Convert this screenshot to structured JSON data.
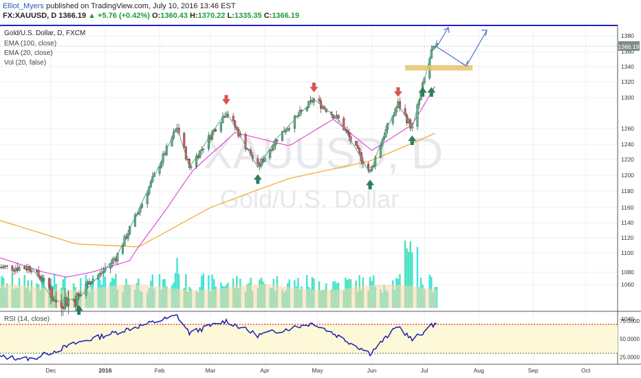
{
  "header": {
    "author": "Elliot_Myers",
    "published": "published on TradingView.com, July 10, 2016 13:46 EST",
    "symbol": "FX:XAUUSD, D",
    "last": "1366.19",
    "change": "+5.76 (+0.42%)",
    "o_label": "O:",
    "o": "1360.43",
    "h_label": "H:",
    "h": "1370.22",
    "l_label": "L:",
    "l": "1335.35",
    "c_label": "C:",
    "c": "1366.19"
  },
  "legend": {
    "title": "Gold/U.S. Dollar, D, FXCM",
    "ema100": "EMA (100, close)",
    "ema20": "EMA (20, close)",
    "vol": "Vol (20, false)",
    "rsi": "RSI (14, close)"
  },
  "watermark": {
    "symbol": "XAUUSD, D",
    "name": "Gold/U.S. Dollar"
  },
  "price_badge": "1366.19",
  "colors": {
    "up": "#53b987",
    "down": "#eb4d5c",
    "ema100": "#f5a623",
    "ema20": "#e14cd3",
    "vol_up": "#3ee4d8",
    "vol_down": "#4fe0b5",
    "vol_ma": "#f7d9a8",
    "rsi": "#1b1bb0",
    "rsi_band": "#fdf8d8",
    "rsi_line": "#e02020",
    "pattern": "#4caf82",
    "arrow_up": "#2e7d5b",
    "arrow_down": "#d9534f",
    "zone": "#e7c36a",
    "projection": "#4a6fd1"
  },
  "chart_data": [
    {
      "type": "candlestick",
      "title": "Gold/U.S. Dollar, D, FXCM",
      "x_tick_labels": [
        "Dec",
        "2016",
        "Feb",
        "Mar",
        "Apr",
        "May",
        "Jun",
        "Jul",
        "Aug",
        "Sep",
        "Oct"
      ],
      "y_tick_labels": [
        1040,
        1060,
        1080,
        1100,
        1120,
        1140,
        1160,
        1180,
        1200,
        1220,
        1240,
        1260,
        1300,
        1320,
        1340,
        1360,
        1380
      ],
      "ylim": [
        1030,
        1392
      ],
      "last_price": 1366.19,
      "resistance_zone": [
        1335,
        1342
      ],
      "key_points": [
        {
          "date": "2015-11-20",
          "price": 1085
        },
        {
          "date": "2015-12-03",
          "price": 1050
        },
        {
          "date": "2015-12-17",
          "price": 1052
        },
        {
          "date": "2016-01-08",
          "price": 1098
        },
        {
          "date": "2016-02-11",
          "price": 1262
        },
        {
          "date": "2016-02-18",
          "price": 1210
        },
        {
          "date": "2016-03-10",
          "price": 1282
        },
        {
          "date": "2016-03-28",
          "price": 1210
        },
        {
          "date": "2016-04-08",
          "price": 1248
        },
        {
          "date": "2016-04-29",
          "price": 1298
        },
        {
          "date": "2016-05-13",
          "price": 1272
        },
        {
          "date": "2016-05-31",
          "price": 1203
        },
        {
          "date": "2016-06-07",
          "price": 1247
        },
        {
          "date": "2016-06-16",
          "price": 1292
        },
        {
          "date": "2016-06-24",
          "price": 1260
        },
        {
          "date": "2016-07-05",
          "price": 1360
        },
        {
          "date": "2016-07-08",
          "price": 1366
        }
      ],
      "series": [
        {
          "name": "EMA (100, close)",
          "points": [
            {
              "date": "2015-11-02",
              "value": 1143
            },
            {
              "date": "2015-12-15",
              "value": 1112
            },
            {
              "date": "2016-01-20",
              "value": 1108
            },
            {
              "date": "2016-03-01",
              "value": 1160
            },
            {
              "date": "2016-04-15",
              "value": 1196
            },
            {
              "date": "2016-05-31",
              "value": 1218
            },
            {
              "date": "2016-07-08",
              "value": 1255
            }
          ]
        },
        {
          "name": "EMA (20, close)",
          "points": [
            {
              "date": "2015-11-02",
              "value": 1095
            },
            {
              "date": "2015-12-10",
              "value": 1072
            },
            {
              "date": "2016-01-15",
              "value": 1092
            },
            {
              "date": "2016-02-20",
              "value": 1206
            },
            {
              "date": "2016-03-15",
              "value": 1255
            },
            {
              "date": "2016-04-15",
              "value": 1238
            },
            {
              "date": "2016-05-10",
              "value": 1272
            },
            {
              "date": "2016-06-01",
              "value": 1232
            },
            {
              "date": "2016-06-24",
              "value": 1265
            },
            {
              "date": "2016-07-08",
              "value": 1318
            }
          ]
        }
      ]
    },
    {
      "type": "line",
      "title": "RSI (14, close)",
      "y_tick_labels": [
        "75.0000",
        "50.0000",
        "25.0000"
      ],
      "ylim": [
        20,
        90
      ],
      "overbought": 70,
      "oversold": 30,
      "key_points": [
        {
          "date": "2015-11-02",
          "value": 25
        },
        {
          "date": "2015-11-20",
          "value": 22
        },
        {
          "date": "2015-12-17",
          "value": 45
        },
        {
          "date": "2016-02-11",
          "value": 82
        },
        {
          "date": "2016-02-18",
          "value": 58
        },
        {
          "date": "2016-03-10",
          "value": 75
        },
        {
          "date": "2016-03-28",
          "value": 55
        },
        {
          "date": "2016-04-29",
          "value": 72
        },
        {
          "date": "2016-05-31",
          "value": 30
        },
        {
          "date": "2016-06-16",
          "value": 68
        },
        {
          "date": "2016-06-24",
          "value": 48
        },
        {
          "date": "2016-07-08",
          "value": 73
        }
      ]
    }
  ]
}
